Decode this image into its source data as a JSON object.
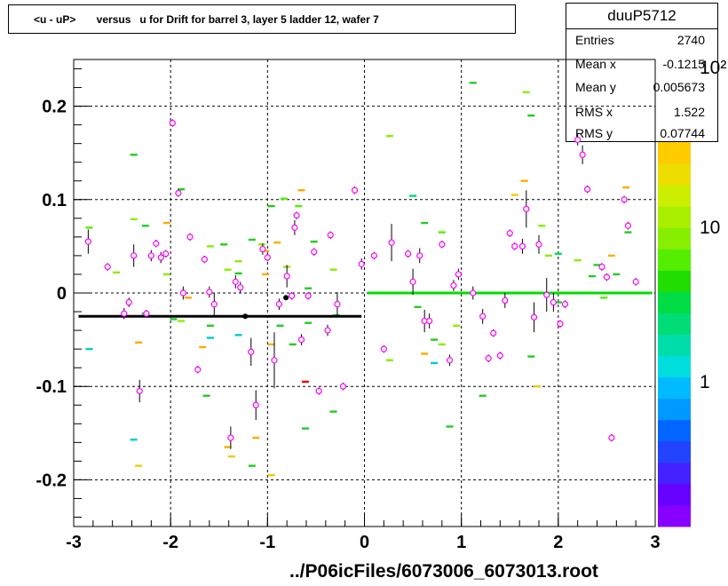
{
  "title": "<u - uP>       versus   u for Drift for barrel 3, layer 5 ladder 12, wafer 7",
  "stats": {
    "name": "duuP5712",
    "rows": [
      {
        "label": "Entries",
        "value": "2740"
      },
      {
        "label": "Mean x",
        "value": "-0.1215"
      },
      {
        "label": "Mean y",
        "value": "0.005673"
      },
      {
        "label": "RMS x",
        "value": "1.522"
      },
      {
        "label": "RMS y",
        "value": "0.07744"
      }
    ]
  },
  "file_label": "../P06icFiles/6073006_6073013.root",
  "colors": {
    "profile_marker": "#ff00ff",
    "error_bar": "#000000",
    "fit_left": "#000000",
    "fit_right": "#00dd00"
  },
  "chart_data": {
    "type": "scatter",
    "xlim": [
      -3,
      3
    ],
    "ylim": [
      -0.25,
      0.25
    ],
    "x_ticks": [
      "-3",
      "-2",
      "-1",
      "0",
      "1",
      "2",
      "3"
    ],
    "y_ticks": [
      "-0.2",
      "-0.1",
      "0",
      "0.1",
      "0.2"
    ],
    "grid": true,
    "palette_labels": [
      "1",
      "10",
      "10²"
    ],
    "fit_lines": [
      {
        "x": [
          -2.95,
          -0.03
        ],
        "y": [
          -0.025,
          -0.025
        ],
        "color": "#000000"
      },
      {
        "x": [
          0.03,
          2.97
        ],
        "y": [
          0.0,
          0.0
        ],
        "color": "#00dd00"
      }
    ],
    "mean_points": [
      {
        "x": -1.23,
        "y": -0.025
      },
      {
        "x": -0.81,
        "y": -0.005
      }
    ],
    "profile_points": [
      {
        "x": -2.85,
        "y": 0.055,
        "err": 0.013
      },
      {
        "x": -2.65,
        "y": 0.028,
        "err": 0.004
      },
      {
        "x": -2.48,
        "y": -0.022,
        "err": 0.006
      },
      {
        "x": -2.43,
        "y": -0.01,
        "err": 0.005
      },
      {
        "x": -2.38,
        "y": 0.04,
        "err": 0.012
      },
      {
        "x": -2.32,
        "y": -0.105,
        "err": 0.012
      },
      {
        "x": -2.25,
        "y": -0.022,
        "err": 0.004
      },
      {
        "x": -2.2,
        "y": 0.04,
        "err": 0.006
      },
      {
        "x": -2.15,
        "y": 0.053,
        "err": 0.004
      },
      {
        "x": -2.1,
        "y": 0.038,
        "err": 0.006
      },
      {
        "x": -2.05,
        "y": 0.042,
        "err": 0.004
      },
      {
        "x": -1.98,
        "y": 0.182,
        "err": 0.004
      },
      {
        "x": -1.92,
        "y": 0.107,
        "err": 0.004
      },
      {
        "x": -1.87,
        "y": 0.0,
        "err": 0.007
      },
      {
        "x": -1.8,
        "y": 0.06,
        "err": 0.004
      },
      {
        "x": -1.72,
        "y": -0.082,
        "err": 0.004
      },
      {
        "x": -1.65,
        "y": 0.036,
        "err": 0.004
      },
      {
        "x": -1.6,
        "y": 0.001,
        "err": 0.006
      },
      {
        "x": -1.55,
        "y": -0.012,
        "err": 0.012
      },
      {
        "x": -1.38,
        "y": -0.155,
        "err": 0.012
      },
      {
        "x": -1.33,
        "y": 0.012,
        "err": 0.007
      },
      {
        "x": -1.28,
        "y": 0.006,
        "err": 0.006
      },
      {
        "x": -1.17,
        "y": -0.063,
        "err": 0.015
      },
      {
        "x": -1.12,
        "y": -0.12,
        "err": 0.016
      },
      {
        "x": -1.05,
        "y": 0.047,
        "err": 0.006
      },
      {
        "x": -1.0,
        "y": 0.038,
        "err": 0.004
      },
      {
        "x": -0.93,
        "y": -0.072,
        "err": 0.03
      },
      {
        "x": -0.88,
        "y": -0.012,
        "err": 0.006
      },
      {
        "x": -0.8,
        "y": 0.018,
        "err": 0.012
      },
      {
        "x": -0.75,
        "y": -0.003,
        "err": 0.004
      },
      {
        "x": -0.72,
        "y": 0.07,
        "err": 0.008
      },
      {
        "x": -0.7,
        "y": 0.083,
        "err": 0.004
      },
      {
        "x": -0.65,
        "y": -0.05,
        "err": 0.006
      },
      {
        "x": -0.58,
        "y": -0.003,
        "err": 0.004
      },
      {
        "x": -0.52,
        "y": 0.044,
        "err": 0.004
      },
      {
        "x": -0.47,
        "y": -0.105,
        "err": 0.004
      },
      {
        "x": -0.38,
        "y": -0.04,
        "err": 0.006
      },
      {
        "x": -0.35,
        "y": 0.062,
        "err": 0.004
      },
      {
        "x": -0.28,
        "y": -0.012,
        "err": 0.013
      },
      {
        "x": -0.22,
        "y": -0.1,
        "err": 0.004
      },
      {
        "x": -0.1,
        "y": 0.11,
        "err": 0.004
      },
      {
        "x": -0.03,
        "y": 0.031,
        "err": 0.006
      },
      {
        "x": 0.1,
        "y": 0.04,
        "err": 0.004
      },
      {
        "x": 0.2,
        "y": -0.06,
        "err": 0.004
      },
      {
        "x": 0.28,
        "y": 0.054,
        "err": 0.02
      },
      {
        "x": 0.45,
        "y": 0.042,
        "err": 0.004
      },
      {
        "x": 0.5,
        "y": 0.012,
        "err": 0.014
      },
      {
        "x": 0.57,
        "y": 0.04,
        "err": 0.008
      },
      {
        "x": 0.62,
        "y": -0.03,
        "err": 0.012
      },
      {
        "x": 0.67,
        "y": -0.03,
        "err": 0.008
      },
      {
        "x": 0.8,
        "y": 0.052,
        "err": 0.004
      },
      {
        "x": 0.88,
        "y": -0.072,
        "err": 0.006
      },
      {
        "x": 0.92,
        "y": 0.008,
        "err": 0.006
      },
      {
        "x": 0.97,
        "y": 0.02,
        "err": 0.006
      },
      {
        "x": 1.12,
        "y": 0.0,
        "err": 0.007
      },
      {
        "x": 1.22,
        "y": -0.025,
        "err": 0.008
      },
      {
        "x": 1.28,
        "y": -0.07,
        "err": 0.004
      },
      {
        "x": 1.33,
        "y": -0.043,
        "err": 0.004
      },
      {
        "x": 1.4,
        "y": -0.067,
        "err": 0.004
      },
      {
        "x": 1.45,
        "y": -0.008,
        "err": 0.008
      },
      {
        "x": 1.5,
        "y": 0.064,
        "err": 0.004
      },
      {
        "x": 1.55,
        "y": 0.05,
        "err": 0.004
      },
      {
        "x": 1.63,
        "y": 0.05,
        "err": 0.008
      },
      {
        "x": 1.67,
        "y": 0.09,
        "err": 0.02
      },
      {
        "x": 1.75,
        "y": -0.026,
        "err": 0.016
      },
      {
        "x": 1.8,
        "y": 0.052,
        "err": 0.01
      },
      {
        "x": 1.88,
        "y": -0.002,
        "err": 0.018
      },
      {
        "x": 1.95,
        "y": -0.01,
        "err": 0.01
      },
      {
        "x": 2.02,
        "y": -0.033,
        "err": 0.004
      },
      {
        "x": 2.07,
        "y": -0.012,
        "err": 0.004
      },
      {
        "x": 2.2,
        "y": 0.164,
        "err": 0.006
      },
      {
        "x": 2.25,
        "y": 0.148,
        "err": 0.01
      },
      {
        "x": 2.3,
        "y": 0.111,
        "err": 0.004
      },
      {
        "x": 2.45,
        "y": 0.028,
        "err": 0.004
      },
      {
        "x": 2.5,
        "y": 0.017,
        "err": 0.004
      },
      {
        "x": 2.55,
        "y": -0.155,
        "err": 0.004
      },
      {
        "x": 2.68,
        "y": 0.1,
        "err": 0.004
      },
      {
        "x": 2.72,
        "y": 0.072,
        "err": 0.004
      },
      {
        "x": 2.8,
        "y": 0.012,
        "err": 0.004
      }
    ],
    "hist_cells": [
      {
        "x": -2.84,
        "y": 0.07,
        "c": "#55ee00"
      },
      {
        "x": -2.84,
        "y": -0.06,
        "c": "#00cccc"
      },
      {
        "x": -2.56,
        "y": 0.022,
        "c": "#88ee00"
      },
      {
        "x": -2.38,
        "y": 0.148,
        "c": "#22cc22"
      },
      {
        "x": -2.38,
        "y": 0.079,
        "c": "#88ee00"
      },
      {
        "x": -2.38,
        "y": -0.157,
        "c": "#00cccc"
      },
      {
        "x": -2.33,
        "y": -0.053,
        "c": "#ffaa00"
      },
      {
        "x": -2.33,
        "y": -0.185,
        "c": "#eecc00"
      },
      {
        "x": -2.26,
        "y": 0.072,
        "c": "#22cc22"
      },
      {
        "x": -2.26,
        "y": -0.022,
        "c": "#22cc22"
      },
      {
        "x": -2.04,
        "y": 0.075,
        "c": "#ffaa00"
      },
      {
        "x": -2.04,
        "y": 0.02,
        "c": "#88ee00"
      },
      {
        "x": -1.97,
        "y": -0.028,
        "c": "#22cc22"
      },
      {
        "x": -1.89,
        "y": 0.111,
        "c": "#22cc22"
      },
      {
        "x": -1.89,
        "y": -0.03,
        "c": "#88ee00"
      },
      {
        "x": -1.82,
        "y": -0.005,
        "c": "#ffaa00"
      },
      {
        "x": -1.67,
        "y": -0.058,
        "c": "#ffaa00"
      },
      {
        "x": -1.59,
        "y": 0.05,
        "c": "#88ee00"
      },
      {
        "x": -1.59,
        "y": -0.035,
        "c": "#22cc22"
      },
      {
        "x": -1.59,
        "y": -0.048,
        "c": "#00cccc"
      },
      {
        "x": -1.63,
        "y": -0.11,
        "c": "#22cc22"
      },
      {
        "x": -1.45,
        "y": 0.052,
        "c": "#22cc22"
      },
      {
        "x": -1.41,
        "y": 0.025,
        "c": "#88ee00"
      },
      {
        "x": -1.41,
        "y": -0.165,
        "c": "#ffaa00"
      },
      {
        "x": -1.37,
        "y": -0.175,
        "c": "#eecc00"
      },
      {
        "x": -1.3,
        "y": 0.021,
        "c": "#22cc22"
      },
      {
        "x": -1.3,
        "y": 0.034,
        "c": "#88ee00"
      },
      {
        "x": -1.3,
        "y": -0.045,
        "c": "#00cccc"
      },
      {
        "x": -1.16,
        "y": 0.057,
        "c": "#22cc22"
      },
      {
        "x": -1.16,
        "y": -0.185,
        "c": "#22cc22"
      },
      {
        "x": -1.12,
        "y": -0.155,
        "c": "#ffaa00"
      },
      {
        "x": -1.06,
        "y": 0.052,
        "c": "#88ee00"
      },
      {
        "x": -1.02,
        "y": 0.02,
        "c": "#ffaa00"
      },
      {
        "x": -1.02,
        "y": 0.045,
        "c": "#ffaa00"
      },
      {
        "x": -0.96,
        "y": 0.093,
        "c": "#22cc22"
      },
      {
        "x": -0.96,
        "y": -0.055,
        "c": "#ffaa00"
      },
      {
        "x": -0.96,
        "y": -0.195,
        "c": "#eecc00"
      },
      {
        "x": -0.9,
        "y": 0.054,
        "c": "#ffaa00"
      },
      {
        "x": -0.87,
        "y": -0.035,
        "c": "#22cc22"
      },
      {
        "x": -0.83,
        "y": 0.101,
        "c": "#55ee00"
      },
      {
        "x": -0.8,
        "y": 0.028,
        "c": "#88ee00"
      },
      {
        "x": -0.74,
        "y": -0.025,
        "c": "#88ee00"
      },
      {
        "x": -0.74,
        "y": -0.055,
        "c": "#22cc22"
      },
      {
        "x": -0.68,
        "y": 0.093,
        "c": "#55ee00"
      },
      {
        "x": -0.65,
        "y": 0.11,
        "c": "#ffaa00"
      },
      {
        "x": -0.61,
        "y": -0.095,
        "c": "#ee0000"
      },
      {
        "x": -0.61,
        "y": -0.145,
        "c": "#22cc22"
      },
      {
        "x": -0.58,
        "y": 0.005,
        "c": "#22cc22"
      },
      {
        "x": -0.58,
        "y": -0.032,
        "c": "#22cc22"
      },
      {
        "x": -0.52,
        "y": 0.055,
        "c": "#22cc22"
      },
      {
        "x": -0.32,
        "y": 0.025,
        "c": "#88ee00"
      },
      {
        "x": -0.32,
        "y": -0.127,
        "c": "#22cc22"
      },
      {
        "x": -0.29,
        "y": -0.024,
        "c": "#22cc22"
      },
      {
        "x": 0.26,
        "y": 0.168,
        "c": "#88ee00"
      },
      {
        "x": 0.26,
        "y": -0.072,
        "c": "#88ee00"
      },
      {
        "x": 0.5,
        "y": 0.104,
        "c": "#00dd66"
      },
      {
        "x": 0.55,
        "y": -0.015,
        "c": "#22cc22"
      },
      {
        "x": 0.62,
        "y": 0.075,
        "c": "#22cc22"
      },
      {
        "x": 0.62,
        "y": -0.065,
        "c": "#ffaa00"
      },
      {
        "x": 0.72,
        "y": -0.075,
        "c": "#00cccc"
      },
      {
        "x": 0.72,
        "y": -0.05,
        "c": "#22cc22"
      },
      {
        "x": 0.8,
        "y": 0.065,
        "c": "#55ee00"
      },
      {
        "x": 0.8,
        "y": -0.055,
        "c": "#88ee00"
      },
      {
        "x": 0.88,
        "y": -0.143,
        "c": "#22cc22"
      },
      {
        "x": 0.95,
        "y": -0.035,
        "c": "#88ee00"
      },
      {
        "x": 1.12,
        "y": 0.225,
        "c": "#22cc22"
      },
      {
        "x": 1.22,
        "y": -0.11,
        "c": "#22cc22"
      },
      {
        "x": 1.55,
        "y": 0.105,
        "c": "#eecc00"
      },
      {
        "x": 1.65,
        "y": 0.12,
        "c": "#ffaa00"
      },
      {
        "x": 1.67,
        "y": 0.215,
        "c": "#88ee00"
      },
      {
        "x": 1.72,
        "y": 0.19,
        "c": "#22cc22"
      },
      {
        "x": 1.72,
        "y": -0.068,
        "c": "#22cc22"
      },
      {
        "x": 1.78,
        "y": -0.1,
        "c": "#eecc00"
      },
      {
        "x": 1.83,
        "y": 0.072,
        "c": "#88ee00"
      },
      {
        "x": 1.9,
        "y": 0.04,
        "c": "#88ee00"
      },
      {
        "x": 2.0,
        "y": 0.042,
        "c": "#00dd66"
      },
      {
        "x": 2.0,
        "y": -0.01,
        "c": "#22cc22"
      },
      {
        "x": 2.2,
        "y": 0.035,
        "c": "#88ee00"
      },
      {
        "x": 2.35,
        "y": 0.018,
        "c": "#22cc22"
      },
      {
        "x": 2.4,
        "y": 0.03,
        "c": "#22cc22"
      },
      {
        "x": 2.47,
        "y": -0.005,
        "c": "#55ee00"
      },
      {
        "x": 2.55,
        "y": 0.04,
        "c": "#ffaa00"
      },
      {
        "x": 2.6,
        "y": 0.02,
        "c": "#22cc22"
      },
      {
        "x": 2.7,
        "y": 0.113,
        "c": "#ffaa00"
      },
      {
        "x": 2.72,
        "y": 0.065,
        "c": "#22cc22"
      }
    ]
  }
}
